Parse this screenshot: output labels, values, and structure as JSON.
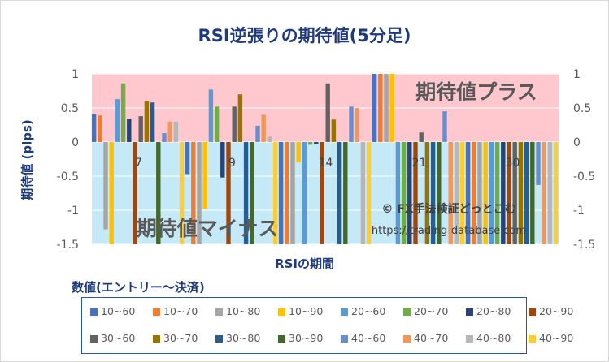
{
  "chart_data": {
    "type": "bar",
    "title": "RSI逆張りの期待値(5分足)",
    "xlabel": "RSIの期間",
    "ylabel": "期待値 (pips)",
    "ylim": [
      -1.5,
      1
    ],
    "yticks": [
      "1",
      "0.5",
      "0",
      "-0.5",
      "-1",
      "-1.5"
    ],
    "ytick_values": [
      1,
      0.5,
      0,
      -0.5,
      -1,
      -1.5
    ],
    "categories": [
      "7",
      "9",
      "14",
      "21",
      "30"
    ],
    "legend_title": "数値(エントリー〜決済)",
    "zones": {
      "plus": "期待値プラス",
      "minus": "期待値マイナス"
    },
    "watermark": {
      "line1": "© FX手法検証どっとこむ",
      "line2": "https://trading-database.com"
    },
    "series": [
      {
        "name": "10~60",
        "color": "#4472c4",
        "values": [
          0.41,
          -0.47,
          -1.5,
          1.0,
          -1.5
        ]
      },
      {
        "name": "10~70",
        "color": "#ed7d31",
        "values": [
          0.39,
          -1.5,
          -1.5,
          1.0,
          -1.5
        ]
      },
      {
        "name": "10~80",
        "color": "#a5a5a5",
        "values": [
          -1.28,
          -1.5,
          -1.5,
          1.0,
          -1.5
        ]
      },
      {
        "name": "10~90",
        "color": "#ffc000",
        "values": [
          -1.5,
          -0.98,
          -0.3,
          1.0,
          -1.5
        ]
      },
      {
        "name": "20~60",
        "color": "#5b9bd5",
        "values": [
          0.63,
          0.77,
          -1.5,
          -1.5,
          -1.5
        ]
      },
      {
        "name": "20~70",
        "color": "#70ad47",
        "values": [
          0.86,
          0.52,
          -0.04,
          -1.5,
          -1.5
        ]
      },
      {
        "name": "20~80",
        "color": "#264478",
        "values": [
          0.34,
          -0.52,
          -0.03,
          -1.5,
          -1.5
        ]
      },
      {
        "name": "20~90",
        "color": "#9e480e",
        "values": [
          -1.5,
          -1.5,
          -1.5,
          -1.5,
          -1.5
        ]
      },
      {
        "name": "30~60",
        "color": "#636363",
        "values": [
          0.38,
          0.52,
          0.86,
          0.14,
          -1.5
        ]
      },
      {
        "name": "30~70",
        "color": "#997300",
        "values": [
          0.6,
          0.7,
          0.33,
          -1.5,
          -1.5
        ]
      },
      {
        "name": "30~80",
        "color": "#255e91",
        "values": [
          0.58,
          -1.5,
          -1.5,
          -1.5,
          -1.5
        ]
      },
      {
        "name": "30~90",
        "color": "#43682b",
        "values": [
          -1.5,
          -1.5,
          -1.5,
          -1.5,
          -1.5
        ]
      },
      {
        "name": "40~60",
        "color": "#698ed0",
        "values": [
          0.13,
          0.24,
          0.52,
          0.45,
          -0.63
        ]
      },
      {
        "name": "40~70",
        "color": "#f1975a",
        "values": [
          0.3,
          0.4,
          0.5,
          -1.5,
          -1.5
        ]
      },
      {
        "name": "40~80",
        "color": "#b7b7b7",
        "values": [
          0.3,
          0.08,
          -1.5,
          -1.5,
          -1.5
        ]
      },
      {
        "name": "40~90",
        "color": "#ffcd33",
        "values": [
          -1.5,
          -1.5,
          -1.5,
          -1.5,
          -1.5
        ]
      }
    ]
  }
}
